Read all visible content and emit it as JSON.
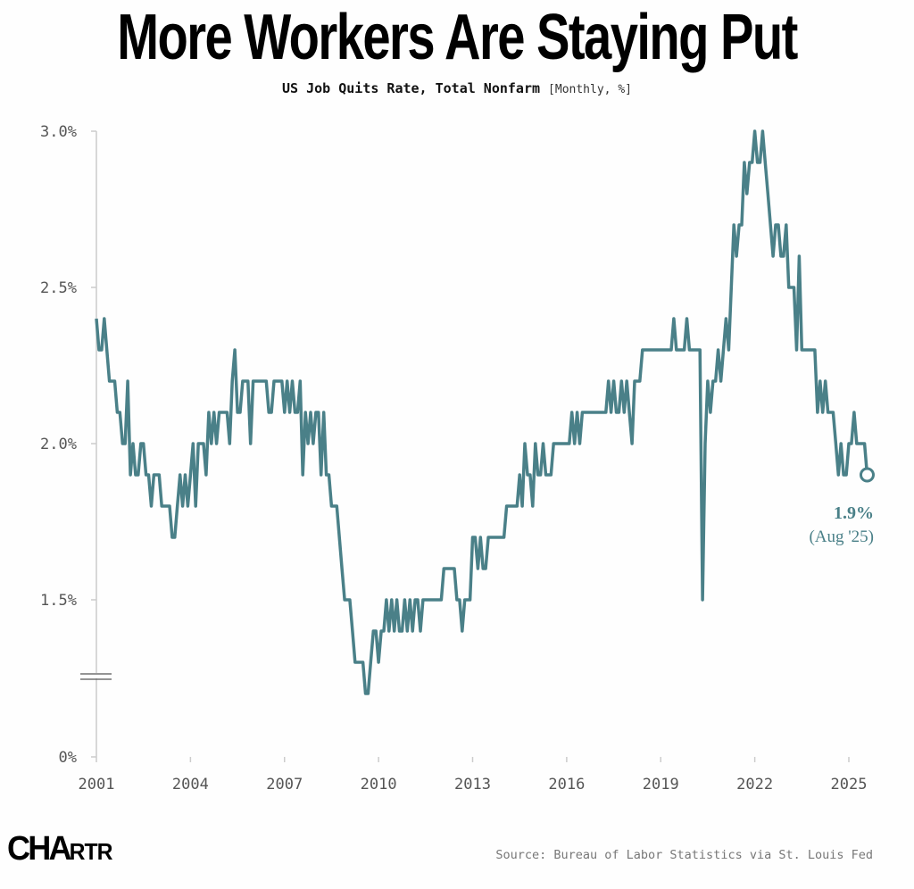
{
  "chart_data": {
    "type": "line",
    "title": "More Workers Are Staying Put",
    "subtitle": "US Job Quits Rate, Total Nonfarm",
    "units": "[Monthly, %]",
    "xlabel": "",
    "ylabel": "",
    "ylim": [
      0,
      3.0
    ],
    "y_axis_break": true,
    "y_ticks": [
      "3.0%",
      "2.5%",
      "2.0%",
      "1.5%",
      "0%"
    ],
    "x_ticks": [
      "2001",
      "2004",
      "2007",
      "2010",
      "2013",
      "2016",
      "2019",
      "2022",
      "2025"
    ],
    "start": "2001-01",
    "frequency": "monthly",
    "series": [
      {
        "name": "Quits rate",
        "color": "#4a8088",
        "values": [
          2.4,
          2.3,
          2.3,
          2.4,
          2.3,
          2.2,
          2.2,
          2.2,
          2.1,
          2.1,
          2.0,
          2.0,
          2.2,
          1.9,
          2.0,
          1.9,
          1.9,
          2.0,
          2.0,
          1.9,
          1.9,
          1.8,
          1.9,
          1.9,
          1.9,
          1.8,
          1.8,
          1.8,
          1.8,
          1.7,
          1.7,
          1.8,
          1.9,
          1.8,
          1.9,
          1.8,
          1.9,
          2.0,
          1.8,
          2.0,
          2.0,
          2.0,
          1.9,
          2.1,
          2.0,
          2.1,
          2.0,
          2.1,
          2.1,
          2.1,
          2.1,
          2.0,
          2.2,
          2.3,
          2.1,
          2.1,
          2.2,
          2.2,
          2.2,
          2.0,
          2.2,
          2.2,
          2.2,
          2.2,
          2.2,
          2.2,
          2.1,
          2.1,
          2.2,
          2.2,
          2.2,
          2.2,
          2.1,
          2.2,
          2.1,
          2.2,
          2.1,
          2.1,
          2.2,
          1.9,
          2.1,
          2.0,
          2.1,
          2.0,
          2.1,
          2.1,
          1.9,
          2.1,
          1.9,
          1.9,
          1.8,
          1.8,
          1.8,
          1.7,
          1.6,
          1.5,
          1.5,
          1.5,
          1.4,
          1.3,
          1.3,
          1.3,
          1.3,
          1.2,
          1.2,
          1.3,
          1.4,
          1.4,
          1.3,
          1.4,
          1.4,
          1.5,
          1.4,
          1.5,
          1.4,
          1.5,
          1.4,
          1.4,
          1.5,
          1.4,
          1.5,
          1.4,
          1.5,
          1.5,
          1.4,
          1.5,
          1.5,
          1.5,
          1.5,
          1.5,
          1.5,
          1.5,
          1.5,
          1.6,
          1.6,
          1.6,
          1.6,
          1.6,
          1.5,
          1.5,
          1.4,
          1.5,
          1.5,
          1.5,
          1.7,
          1.7,
          1.6,
          1.7,
          1.6,
          1.6,
          1.7,
          1.7,
          1.7,
          1.7,
          1.7,
          1.7,
          1.7,
          1.8,
          1.8,
          1.8,
          1.8,
          1.8,
          1.9,
          1.8,
          2.0,
          1.9,
          1.9,
          1.8,
          2.0,
          1.9,
          1.9,
          2.0,
          1.9,
          1.9,
          1.9,
          2.0,
          2.0,
          2.0,
          2.0,
          2.0,
          2.0,
          2.0,
          2.1,
          2.0,
          2.1,
          2.0,
          2.1,
          2.1,
          2.1,
          2.1,
          2.1,
          2.1,
          2.1,
          2.1,
          2.1,
          2.1,
          2.2,
          2.1,
          2.2,
          2.1,
          2.1,
          2.2,
          2.1,
          2.2,
          2.1,
          2.0,
          2.2,
          2.2,
          2.2,
          2.3,
          2.3,
          2.3,
          2.3,
          2.3,
          2.3,
          2.3,
          2.3,
          2.3,
          2.3,
          2.3,
          2.3,
          2.4,
          2.3,
          2.3,
          2.3,
          2.3,
          2.4,
          2.3,
          2.3,
          2.3,
          2.3,
          2.3,
          1.5,
          2.0,
          2.2,
          2.1,
          2.2,
          2.2,
          2.3,
          2.2,
          2.3,
          2.4,
          2.3,
          2.5,
          2.7,
          2.6,
          2.7,
          2.7,
          2.9,
          2.8,
          2.9,
          2.9,
          3.0,
          2.9,
          2.9,
          3.0,
          2.9,
          2.8,
          2.7,
          2.6,
          2.7,
          2.7,
          2.6,
          2.6,
          2.7,
          2.5,
          2.5,
          2.5,
          2.3,
          2.6,
          2.3,
          2.3,
          2.3,
          2.3,
          2.3,
          2.3,
          2.1,
          2.2,
          2.1,
          2.2,
          2.1,
          2.1,
          2.1,
          2.0,
          1.9,
          2.0,
          1.9,
          1.9,
          2.0,
          2.0,
          2.1,
          2.0,
          2.0,
          2.0,
          2.0,
          1.9
        ]
      }
    ],
    "annotation": {
      "value": "1.9%",
      "date": "(Aug '25)"
    },
    "grid": false,
    "legend": "none",
    "source": "Source: Bureau of Labor Statistics via St. Louis Fed",
    "brand": "CHARTR"
  }
}
